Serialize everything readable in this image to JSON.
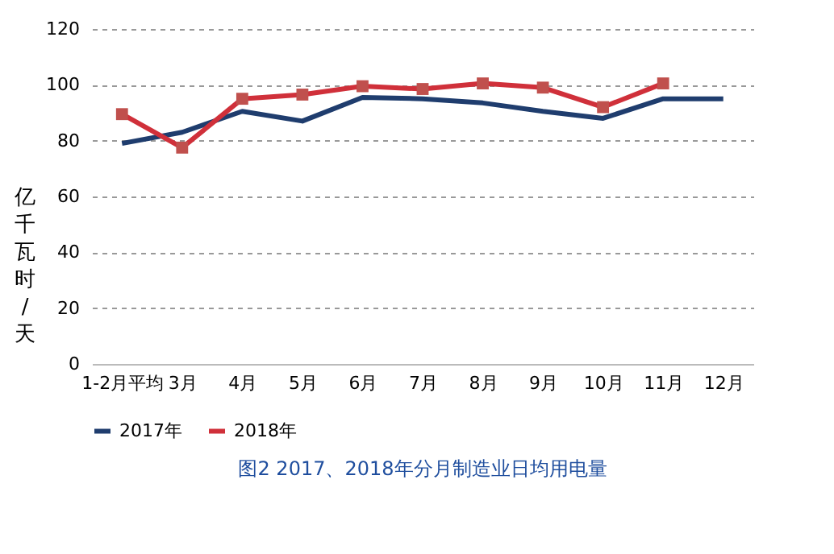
{
  "chart_data": {
    "type": "line",
    "title": "图2    2017、2018年分月制造业日均用电量",
    "ylabel": "亿千瓦时/天",
    "categories": [
      "1-2月平均",
      "3月",
      "4月",
      "5月",
      "6月",
      "7月",
      "8月",
      "9月",
      "10月",
      "11月",
      "12月"
    ],
    "series": [
      {
        "name": "2017年",
        "color": "#1f3d6e",
        "marker": "none",
        "values": [
          79,
          83,
          90.5,
          87,
          95.5,
          95,
          93.5,
          90.5,
          88,
          95,
          95
        ]
      },
      {
        "name": "2018年",
        "color": "#d0303a",
        "marker": "square",
        "values": [
          89.5,
          77.5,
          95,
          96.5,
          99.5,
          98.5,
          100.5,
          99,
          92,
          100.5,
          null
        ]
      }
    ],
    "ylim": [
      0,
      120
    ],
    "yticks": [
      0,
      20,
      40,
      60,
      80,
      100,
      120
    ],
    "grid": "y",
    "legend": "bottom"
  }
}
